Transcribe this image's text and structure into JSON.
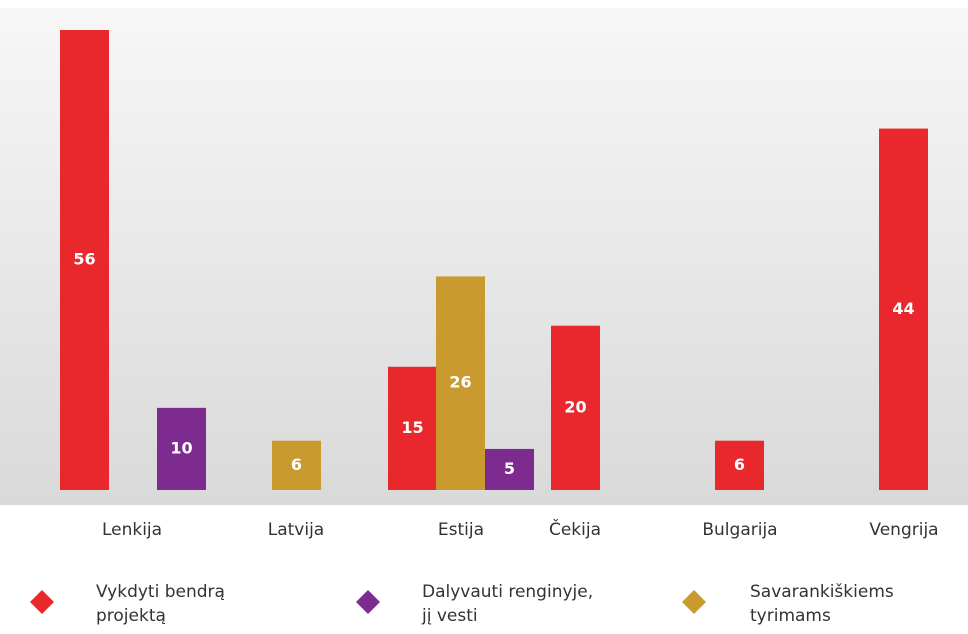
{
  "chart_data": {
    "type": "bar",
    "categories": [
      "Lenkija",
      "Latvija",
      "Estija",
      "Čekija",
      "Bulgarija",
      "Vengrija"
    ],
    "series": [
      {
        "name": "Vykdyti bendrą projektą",
        "color": "#e8282c",
        "values": [
          56,
          null,
          15,
          20,
          6,
          44
        ]
      },
      {
        "name": "Dalyvauti renginyje, jį vesti",
        "color": "#7e2b8f",
        "values": [
          10,
          null,
          5,
          null,
          null,
          null
        ]
      },
      {
        "name": "Savarankiškiems tyrimams",
        "color": "#c99a2e",
        "values": [
          null,
          6,
          26,
          null,
          null,
          null
        ]
      }
    ]
  }
}
